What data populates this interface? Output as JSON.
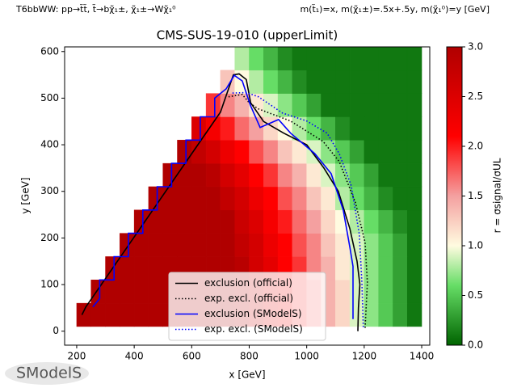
{
  "chart_data": {
    "type": "heatmap",
    "header_left": "T6bbWW: pp→t̃t̃, t̃→bχ̃₁±, χ̃₁±→Wχ̃₁⁰",
    "header_right": "m(t̃₁)=x, m(χ̃₁±)=.5x+.5y, m(χ̃₁⁰)=y [GeV]",
    "title": "CMS-SUS-19-010 (upperLimit)",
    "xlabel": "x [GeV]",
    "ylabel": "y [GeV]",
    "colorbar_label": "r = σsignal/σUL",
    "logo": "SModelS",
    "xlim": [
      158,
      1428
    ],
    "ylim": [
      -30,
      610
    ],
    "xticks": [
      200,
      400,
      600,
      800,
      1000,
      1200,
      1400
    ],
    "yticks": [
      0,
      100,
      200,
      300,
      400,
      500,
      600
    ],
    "clim": [
      0,
      3
    ],
    "cticks": [
      {
        "value": 0,
        "label": "0.0"
      },
      {
        "value": 0.5,
        "label": "0.5"
      },
      {
        "value": 1,
        "label": "1.0"
      },
      {
        "value": 1.5,
        "label": "1.5"
      },
      {
        "value": 2,
        "label": "2.0"
      },
      {
        "value": 2.5,
        "label": "2.5"
      },
      {
        "value": 3,
        "label": "3.0"
      }
    ],
    "colormap": [
      [
        0,
        "#006400"
      ],
      [
        0.6,
        "#66dd66"
      ],
      [
        1.0,
        "#fffbe0"
      ],
      [
        1.5,
        "#f4a0a0"
      ],
      [
        2.1,
        "#ff0000"
      ],
      [
        3.0,
        "#b00000"
      ]
    ],
    "legend": "lower center",
    "xbins": [
      200,
      250,
      300,
      350,
      400,
      450,
      500,
      550,
      600,
      650,
      700,
      750,
      800,
      850,
      900,
      950,
      1000,
      1050,
      1100,
      1150,
      1200,
      1250,
      1300,
      1350,
      1400
    ],
    "ybins": [
      10,
      60,
      110,
      160,
      210,
      260,
      310,
      360,
      410,
      460,
      510,
      560,
      610
    ],
    "z": [
      [
        3,
        3,
        3,
        3,
        3,
        3,
        3,
        3,
        3,
        3,
        3,
        2.9,
        2.7,
        2.4,
        2.2,
        1.9,
        1.7,
        1.4,
        1.2,
        0.9,
        0.7,
        0.5,
        0.3,
        0.1
      ],
      [
        null,
        3,
        3,
        3,
        3,
        3,
        3,
        3,
        3,
        3,
        3,
        2.9,
        2.7,
        2.4,
        2.2,
        1.9,
        1.7,
        1.4,
        1.2,
        0.9,
        0.7,
        0.5,
        0.3,
        0.1
      ],
      [
        null,
        null,
        3,
        3,
        3,
        3,
        3,
        3,
        3,
        3,
        3,
        2.9,
        2.6,
        2.4,
        2.1,
        1.9,
        1.6,
        1.4,
        1.1,
        0.9,
        0.7,
        0.5,
        0.3,
        0.1
      ],
      [
        null,
        null,
        null,
        3,
        3,
        3,
        3,
        3,
        3,
        3,
        3,
        2.8,
        2.6,
        2.3,
        2.1,
        1.8,
        1.6,
        1.3,
        1.1,
        0.9,
        0.7,
        0.5,
        0.3,
        0.1
      ],
      [
        null,
        null,
        null,
        null,
        3,
        3,
        3,
        3,
        3,
        3,
        3,
        2.7,
        2.5,
        2.2,
        2.0,
        1.7,
        1.5,
        1.2,
        1.0,
        0.8,
        0.6,
        0.4,
        0.2,
        0.1
      ],
      [
        null,
        null,
        null,
        null,
        null,
        3,
        3,
        3,
        3,
        3,
        2.8,
        2.6,
        2.3,
        2.1,
        1.8,
        1.6,
        1.3,
        1.1,
        0.8,
        0.6,
        0.4,
        0.2,
        0.1,
        0.1
      ],
      [
        null,
        null,
        null,
        null,
        null,
        null,
        3,
        3,
        3,
        2.9,
        2.6,
        2.4,
        2.1,
        1.9,
        1.6,
        1.4,
        1.1,
        0.9,
        0.7,
        0.5,
        0.3,
        0.1,
        0.1,
        0.1
      ],
      [
        null,
        null,
        null,
        null,
        null,
        null,
        null,
        3,
        2.8,
        2.6,
        2.3,
        2.1,
        1.8,
        1.6,
        1.3,
        1.1,
        0.9,
        0.7,
        0.5,
        0.3,
        0.1,
        0.1,
        0.1,
        0.1
      ],
      [
        null,
        null,
        null,
        null,
        null,
        null,
        null,
        null,
        2.5,
        2.2,
        2.0,
        1.7,
        1.5,
        1.2,
        1.0,
        0.8,
        0.6,
        0.4,
        0.2,
        0.1,
        0.1,
        0.1,
        0.1,
        0.1
      ],
      [
        null,
        null,
        null,
        null,
        null,
        null,
        null,
        null,
        null,
        1.9,
        1.6,
        1.4,
        1.1,
        0.9,
        0.7,
        0.5,
        0.3,
        0.1,
        0.1,
        0.1,
        0.1,
        0.1,
        0.1,
        0.1
      ],
      [
        null,
        null,
        null,
        null,
        null,
        null,
        null,
        null,
        null,
        null,
        1.3,
        1.0,
        0.8,
        0.6,
        0.4,
        0.2,
        0.1,
        0.1,
        0.1,
        0.1,
        0.1,
        0.1,
        0.1,
        0.1
      ],
      [
        null,
        null,
        null,
        null,
        null,
        null,
        null,
        null,
        null,
        null,
        null,
        0.8,
        0.6,
        0.4,
        0.2,
        0.1,
        0.1,
        0.1,
        0.1,
        0.1,
        0.1,
        0.1,
        0.1,
        0.1
      ]
    ],
    "series": [
      {
        "name": "exclusion (official)",
        "color": "#000000",
        "dash": "solid",
        "x": [
          218,
          232,
          700,
          745,
          765,
          790,
          805,
          850,
          920,
          1000,
          1060,
          1110,
          1150,
          1175,
          1185,
          1180,
          1178
        ],
        "y": [
          35,
          52,
          470,
          550,
          552,
          540,
          490,
          450,
          425,
          400,
          350,
          300,
          220,
          150,
          100,
          50,
          0
        ]
      },
      {
        "name": "exp. excl. (official)",
        "color": "#000000",
        "dash": "dotted",
        "x": [
          728,
          776,
          800,
          832,
          944,
          1057,
          1113,
          1169,
          1203,
          1211,
          1203
        ],
        "y": [
          503,
          508,
          490,
          477,
          451,
          407,
          364,
          277,
          191,
          104,
          5
        ]
      },
      {
        "name": "exclusion (SModelS)",
        "color": "#0000ff",
        "dash": "solid",
        "x": [
          256,
          280,
          280,
          330,
          330,
          380,
          380,
          430,
          430,
          480,
          480,
          530,
          530,
          580,
          580,
          630,
          630,
          680,
          680,
          720,
          748,
          776,
          804,
          838,
          902,
          944,
          1028,
          1085,
          1127,
          1150,
          1161,
          1161
        ],
        "y": [
          52,
          70,
          110,
          110,
          160,
          160,
          210,
          210,
          260,
          260,
          310,
          310,
          360,
          360,
          410,
          410,
          460,
          460,
          500,
          520,
          549,
          537,
          485,
          437,
          454,
          425,
          381,
          338,
          260,
          180,
          139,
          26
        ]
      },
      {
        "name": "exp. excl. (SModelS)",
        "color": "#0000ff",
        "dash": "dotted",
        "x": [
          742,
          790,
          832,
          916,
          1000,
          1071,
          1113,
          1155,
          1183,
          1192,
          1197
        ],
        "y": [
          511,
          512,
          503,
          468,
          451,
          425,
          381,
          312,
          208,
          104,
          5
        ]
      }
    ]
  }
}
